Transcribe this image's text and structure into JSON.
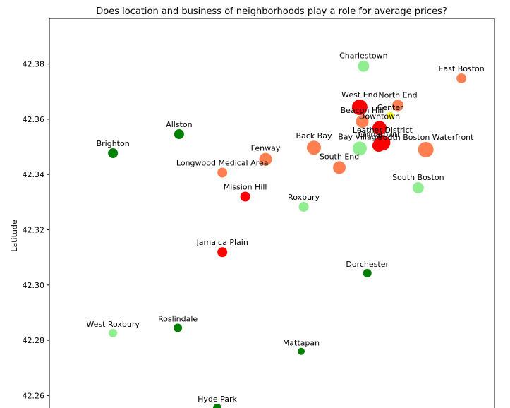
{
  "chart_data": {
    "type": "scatter",
    "title": "Does location and business of neighborhoods play a role for average prices?",
    "xlabel": "",
    "ylabel": "Latitude",
    "x_range": [
      -71.185,
      -71.01
    ],
    "ylim": [
      42.2555,
      42.3965
    ],
    "yticks": [
      42.26,
      42.28,
      42.3,
      42.32,
      42.34,
      42.36,
      42.38
    ],
    "ytick_labels": [
      "42.26",
      "42.28",
      "42.30",
      "42.32",
      "42.34",
      "42.36",
      "42.38"
    ],
    "grid": false,
    "legend": "none",
    "colors": {
      "red": "#ff0000",
      "coral": "#ff7f50",
      "yellow": "#ffff00",
      "lightgreen": "#90ee90",
      "green": "#008000"
    },
    "points": [
      {
        "name": "Charlestown",
        "lon": -71.0615,
        "lat": 42.3792,
        "color": "lightgreen",
        "size": 8
      },
      {
        "name": "East Boston",
        "lon": -71.023,
        "lat": 42.3748,
        "color": "coral",
        "size": 7
      },
      {
        "name": "North End",
        "lon": -71.048,
        "lat": 42.365,
        "color": "coral",
        "size": 8
      },
      {
        "name": "West End",
        "lon": -71.063,
        "lat": 42.3643,
        "color": "red",
        "size": 11
      },
      {
        "name": "Center",
        "lon": -71.051,
        "lat": 42.3613,
        "color": "yellow",
        "size": 5
      },
      {
        "name": "Beacon Hill",
        "lon": -71.062,
        "lat": 42.3592,
        "color": "coral",
        "size": 9
      },
      {
        "name": "Downtown",
        "lon": -71.0552,
        "lat": 42.3568,
        "color": "red",
        "size": 10
      },
      {
        "name": "Leather District",
        "lon": -71.054,
        "lat": 42.3515,
        "color": "red",
        "size": 11
      },
      {
        "name": "Chinatown",
        "lon": -71.0555,
        "lat": 42.3505,
        "color": "red",
        "size": 9
      },
      {
        "name": "South Boston Waterfront",
        "lon": -71.037,
        "lat": 42.349,
        "color": "coral",
        "size": 11
      },
      {
        "name": "Bay Village",
        "lon": -71.063,
        "lat": 42.3494,
        "color": "lightgreen",
        "size": 10
      },
      {
        "name": "Back Bay",
        "lon": -71.081,
        "lat": 42.3497,
        "color": "coral",
        "size": 10
      },
      {
        "name": "Allston",
        "lon": -71.134,
        "lat": 42.3546,
        "color": "green",
        "size": 7
      },
      {
        "name": "Brighton",
        "lon": -71.16,
        "lat": 42.3477,
        "color": "green",
        "size": 7
      },
      {
        "name": "Fenway",
        "lon": -71.1,
        "lat": 42.3455,
        "color": "coral",
        "size": 9
      },
      {
        "name": "South End",
        "lon": -71.071,
        "lat": 42.3425,
        "color": "coral",
        "size": 9
      },
      {
        "name": "Longwood Medical Area",
        "lon": -71.117,
        "lat": 42.3407,
        "color": "coral",
        "size": 7
      },
      {
        "name": "South Boston",
        "lon": -71.04,
        "lat": 42.3352,
        "color": "lightgreen",
        "size": 8
      },
      {
        "name": "Mission Hill",
        "lon": -71.108,
        "lat": 42.332,
        "color": "red",
        "size": 7
      },
      {
        "name": "Roxbury",
        "lon": -71.085,
        "lat": 42.3283,
        "color": "lightgreen",
        "size": 7
      },
      {
        "name": "Jamaica Plain",
        "lon": -71.117,
        "lat": 42.3119,
        "color": "red",
        "size": 7
      },
      {
        "name": "Dorchester",
        "lon": -71.06,
        "lat": 42.3043,
        "color": "green",
        "size": 6
      },
      {
        "name": "West Roxbury",
        "lon": -71.16,
        "lat": 42.2826,
        "color": "lightgreen",
        "size": 6
      },
      {
        "name": "Roslindale",
        "lon": -71.1345,
        "lat": 42.2845,
        "color": "green",
        "size": 6
      },
      {
        "name": "Mattapan",
        "lon": -71.086,
        "lat": 42.276,
        "color": "green",
        "size": 5
      },
      {
        "name": "Hyde Park",
        "lon": -71.119,
        "lat": 42.2555,
        "color": "green",
        "size": 6
      }
    ]
  }
}
